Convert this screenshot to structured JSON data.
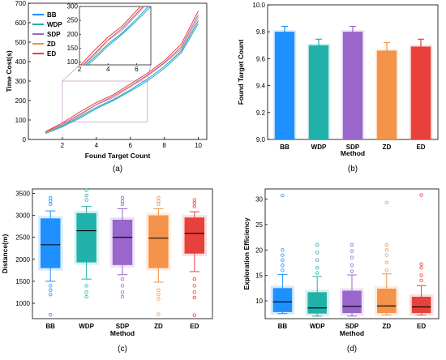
{
  "colors": {
    "BB": "#1e90ff",
    "WDP": "#20b2aa",
    "SDP": "#9966cc",
    "ZD": "#f4934a",
    "ED": "#e8403a"
  },
  "chart_data": [
    {
      "panel": "(a)",
      "type": "line",
      "xlabel": "Found Target Count",
      "ylabel": "Time Cost(s)",
      "xlim": [
        0,
        10.5
      ],
      "ylim": [
        0,
        700
      ],
      "xticks": [
        2,
        4,
        6,
        8,
        10
      ],
      "yticks": [
        0,
        100,
        200,
        300,
        400,
        500,
        600,
        700
      ],
      "grid": false,
      "legend": "top-left",
      "x": [
        1,
        2,
        3,
        4,
        5,
        6,
        7,
        8,
        9,
        10
      ],
      "series": [
        {
          "name": "BB",
          "values": [
            35,
            70,
            115,
            165,
            205,
            255,
            310,
            375,
            455,
            610
          ]
        },
        {
          "name": "WDP",
          "values": [
            30,
            65,
            108,
            158,
            200,
            248,
            300,
            365,
            445,
            595
          ]
        },
        {
          "name": "SDP",
          "values": [
            38,
            78,
            128,
            180,
            222,
            275,
            330,
            395,
            475,
            640
          ]
        },
        {
          "name": "ZD",
          "values": [
            35,
            75,
            122,
            178,
            215,
            270,
            325,
            390,
            465,
            625
          ]
        },
        {
          "name": "ED",
          "values": [
            40,
            85,
            140,
            190,
            230,
            285,
            340,
            405,
            490,
            660
          ]
        }
      ],
      "inset": {
        "xlim": [
          2,
          7
        ],
        "ylim": [
          90,
          300
        ],
        "xticks": [
          2,
          4,
          6
        ],
        "yticks": [
          100,
          150,
          200,
          250,
          300
        ]
      }
    },
    {
      "panel": "(b)",
      "type": "bar",
      "xlabel": "Method",
      "ylabel": "Found Target Count",
      "ylim": [
        9.0,
        10.0
      ],
      "yticks": [
        9.0,
        9.2,
        9.4,
        9.6,
        9.8,
        10.0
      ],
      "categories": [
        "BB",
        "WDP",
        "SDP",
        "ZD",
        "ED"
      ],
      "values": [
        9.8,
        9.7,
        9.8,
        9.66,
        9.69
      ],
      "errors": [
        0.04,
        0.045,
        0.04,
        0.06,
        0.055
      ]
    },
    {
      "panel": "(c)",
      "type": "box",
      "xlabel": "Method",
      "ylabel": "Distance(m)",
      "ylim": [
        650,
        3600
      ],
      "yticks": [
        1000,
        1500,
        2000,
        2500,
        3000,
        3500
      ],
      "categories": [
        "BB",
        "WDP",
        "SDP",
        "ZD",
        "ED"
      ],
      "boxes": [
        {
          "whislo": 1500,
          "q1": 1800,
          "med": 2330,
          "q3": 2930,
          "whishi": 3100,
          "fliers": [
            3250,
            3330,
            3400,
            1400,
            1300,
            1200,
            740
          ]
        },
        {
          "whislo": 1550,
          "q1": 1930,
          "med": 2650,
          "q3": 3050,
          "whishi": 3200,
          "fliers": [
            3350,
            3450,
            3570,
            1400,
            1250,
            1150
          ]
        },
        {
          "whislo": 1650,
          "q1": 1870,
          "med": 2500,
          "q3": 2900,
          "whishi": 3150,
          "fliers": [
            3250,
            3320,
            3400,
            1550,
            1400,
            1250,
            1150
          ]
        },
        {
          "whislo": 1480,
          "q1": 1800,
          "med": 2480,
          "q3": 3000,
          "whishi": 3150,
          "fliers": [
            3250,
            3320,
            3400,
            1300,
            1200,
            1100,
            750
          ]
        },
        {
          "whislo": 1720,
          "q1": 2130,
          "med": 2590,
          "q3": 2950,
          "whishi": 3080,
          "fliers": [
            3200,
            3280,
            3350,
            1550,
            1400,
            1250,
            1130,
            730
          ]
        }
      ]
    },
    {
      "panel": "(d)",
      "type": "box",
      "xlabel": "Method",
      "ylabel": "Exploration Efficiency",
      "ylim": [
        6.5,
        32
      ],
      "yticks": [
        10,
        15,
        20,
        25,
        30
      ],
      "categories": [
        "BB",
        "WDP",
        "SDP",
        "ZD",
        "ED"
      ],
      "boxes": [
        {
          "whislo": 7.5,
          "q1": 7.8,
          "med": 9.8,
          "q3": 12.5,
          "whishi": 15.2,
          "fliers": [
            16,
            17,
            18,
            19,
            20,
            30.7
          ]
        },
        {
          "whislo": 7.0,
          "q1": 7.5,
          "med": 8.6,
          "q3": 11.7,
          "whishi": 14.8,
          "fliers": [
            15.5,
            16.5,
            18,
            19.5,
            21
          ]
        },
        {
          "whislo": 7.0,
          "q1": 7.6,
          "med": 8.9,
          "q3": 12.0,
          "whishi": 15.1,
          "fliers": [
            15.8,
            17,
            18.5,
            19.8,
            21
          ]
        },
        {
          "whislo": 7.2,
          "q1": 7.6,
          "med": 9.0,
          "q3": 12.4,
          "whishi": 15.3,
          "fliers": [
            16,
            17.5,
            19,
            20,
            21,
            29.3
          ]
        },
        {
          "whislo": 7.2,
          "q1": 7.6,
          "med": 8.8,
          "q3": 10.8,
          "whishi": 13.0,
          "fliers": [
            14,
            15,
            16.5,
            17.2,
            30.8
          ]
        }
      ]
    }
  ]
}
